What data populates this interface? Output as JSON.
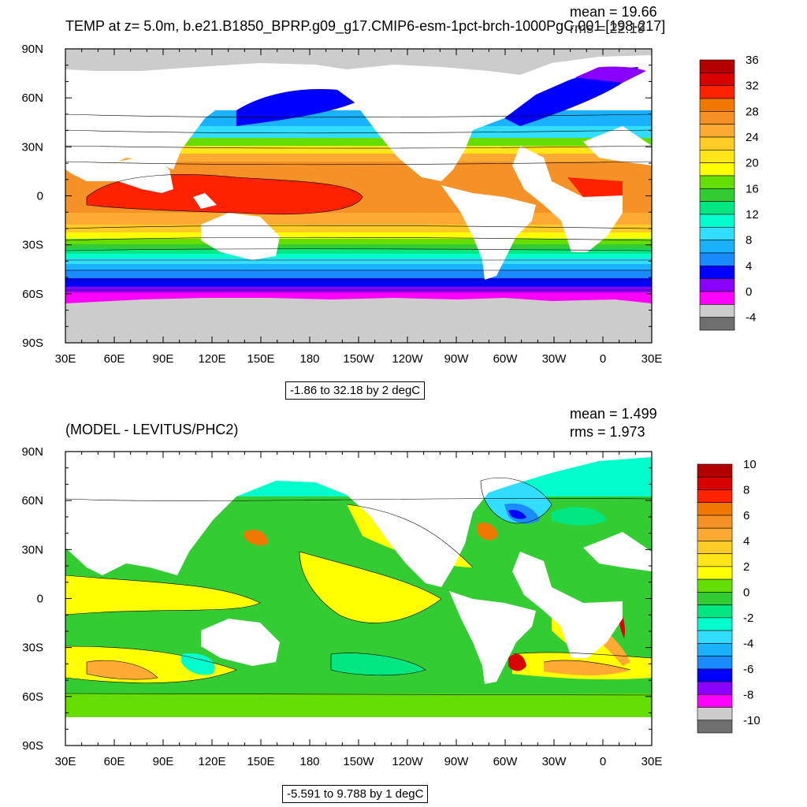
{
  "top_panel": {
    "title": "TEMP at z=   5.0m, b.e21.B1850_BPRP.g09_g17.CMIP6-esm-1pct-brch-1000PgC.001 [198-217]",
    "mean": "mean = 19.66",
    "rms": "rms = 22.19",
    "range": "-1.86 to 32.18 by 2 degC",
    "colorbar_labels": [
      "36",
      "32",
      "28",
      "24",
      "20",
      "16",
      "12",
      "8",
      "4",
      "0",
      "-4"
    ]
  },
  "bottom_panel": {
    "title": "(MODEL - LEVITUS/PHC2)",
    "mean": "mean = 1.499",
    "rms": "rms = 1.973",
    "range": "-5.591 to 9.788 by 1 degC",
    "colorbar_labels": [
      "10",
      "8",
      "6",
      "4",
      "2",
      "0",
      "-2",
      "-4",
      "-6",
      "-8",
      "-10"
    ]
  },
  "colors": {
    "top_colorbar": [
      "#b30000",
      "#d90000",
      "#ff2200",
      "#f07800",
      "#f59126",
      "#ffaa33",
      "#ffcc26",
      "#ffe51a",
      "#ffff00",
      "#66dd00",
      "#33cc33",
      "#00e680",
      "#00ffcc",
      "#33ddff",
      "#1ab2ff",
      "#1a8cff",
      "#0000ff",
      "#8a00ff",
      "#ff00ff",
      "#cccccc",
      "#6e6e6e"
    ],
    "bottom_colorbar": [
      "#b30000",
      "#d90000",
      "#ff2200",
      "#f07800",
      "#f59126",
      "#ffaa33",
      "#ffcc26",
      "#ffe51a",
      "#ffff00",
      "#66dd00",
      "#33cc33",
      "#00e680",
      "#00ffcc",
      "#33ddff",
      "#1ab2ff",
      "#1a8cff",
      "#0000ff",
      "#8a00ff",
      "#ff00ff",
      "#cccccc",
      "#6e6e6e"
    ],
    "land": "#ffffff",
    "ice": "#cccccc"
  },
  "chart_data": [
    {
      "type": "heatmap",
      "title": "TEMP at z=   5.0m, b.e21.B1850_BPRP.g09_g17.CMIP6-esm-1pct-brch-1000PgC.001 [198-217]",
      "x_ticks": [
        "30E",
        "60E",
        "90E",
        "120E",
        "150E",
        "180",
        "150W",
        "120W",
        "90W",
        "60W",
        "30W",
        "0",
        "30E"
      ],
      "y_ticks": [
        "90N",
        "60N",
        "30N",
        "0",
        "30S",
        "60S",
        "90S"
      ],
      "xlim": [
        30,
        390
      ],
      "ylim": [
        -90,
        90
      ],
      "stats": {
        "mean": 19.66,
        "rms": 22.19
      },
      "contour_min": -1.86,
      "contour_max": 32.18,
      "contour_interval": 2,
      "units": "degC",
      "colorbar_levels": [
        36,
        32,
        28,
        24,
        20,
        16,
        12,
        8,
        4,
        0,
        -4
      ]
    },
    {
      "type": "heatmap",
      "title": "(MODEL - LEVITUS/PHC2)",
      "x_ticks": [
        "30E",
        "60E",
        "90E",
        "120E",
        "150E",
        "180",
        "150W",
        "120W",
        "90W",
        "60W",
        "30W",
        "0",
        "30E"
      ],
      "y_ticks": [
        "90N",
        "60N",
        "30N",
        "0",
        "30S",
        "60S",
        "90S"
      ],
      "xlim": [
        30,
        390
      ],
      "ylim": [
        -90,
        90
      ],
      "stats": {
        "mean": 1.499,
        "rms": 1.973
      },
      "contour_min": -5.591,
      "contour_max": 9.788,
      "contour_interval": 1,
      "units": "degC",
      "colorbar_levels": [
        10,
        8,
        6,
        4,
        2,
        0,
        -2,
        -4,
        -6,
        -8,
        -10
      ]
    }
  ]
}
